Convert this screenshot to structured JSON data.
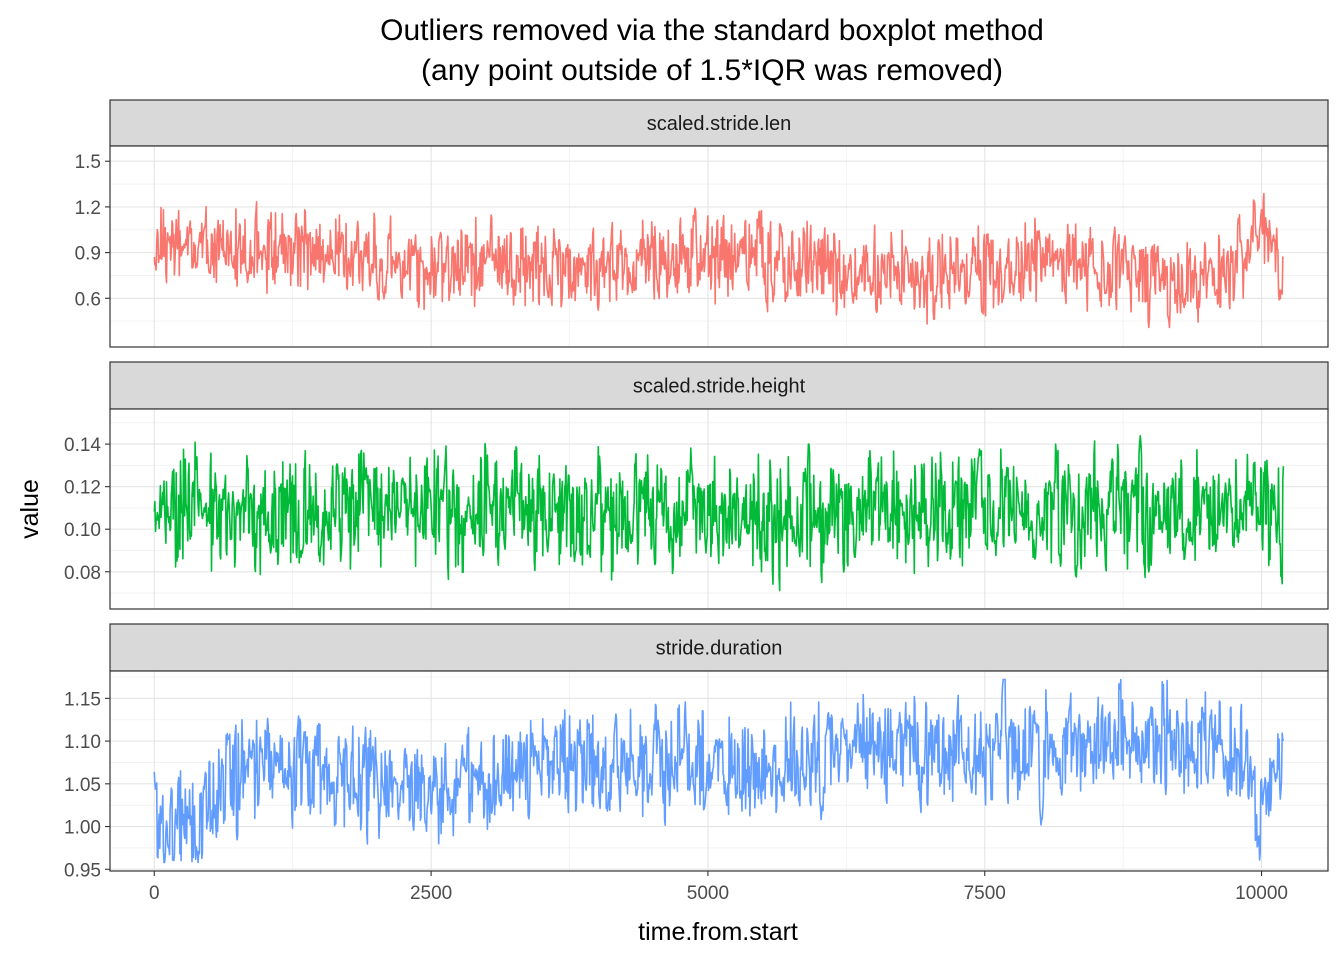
{
  "chart_data": {
    "type": "line",
    "title": "Outliers removed via the standard boxplot method",
    "subtitle": "(any point outside of 1.5*IQR was removed)",
    "xlabel": "time.from.start",
    "ylabel": "value",
    "xlim": [
      -400,
      10600
    ],
    "x_ticks": [
      0,
      2500,
      5000,
      7500,
      10000
    ],
    "x_tick_labels": [
      "0",
      "2500",
      "5000",
      "7500",
      "10000"
    ],
    "grid": true,
    "legend": "none",
    "facets": [
      {
        "strip": "scaled.stride.len",
        "color": "#F8766D",
        "ylim": [
          0.28,
          1.6
        ],
        "y_ticks": [
          0.6,
          0.9,
          1.2,
          1.5
        ],
        "y_tick_labels": [
          "0.6",
          "0.9",
          "1.2",
          "1.5"
        ],
        "baseline": 0.9,
        "amp": 0.22,
        "min": 0.38,
        "max": 1.45,
        "seed": 11,
        "x": [
          0,
          300,
          600,
          900,
          1200,
          1500,
          1800,
          2100,
          2400,
          2700,
          3000,
          3300,
          3600,
          3900,
          4200,
          4500,
          4800,
          5100,
          5400,
          5700,
          6000,
          6300,
          6600,
          6900,
          7200,
          7500,
          7800,
          8100,
          8400,
          8700,
          9000,
          9300,
          9600,
          9800,
          10000,
          10200
        ],
        "y": [
          1.05,
          0.95,
          0.9,
          0.92,
          0.9,
          0.88,
          0.88,
          0.85,
          0.85,
          0.83,
          0.82,
          0.82,
          0.82,
          0.8,
          0.82,
          0.83,
          0.85,
          0.85,
          0.86,
          0.85,
          0.8,
          0.78,
          0.78,
          0.75,
          0.75,
          0.78,
          0.8,
          0.82,
          0.82,
          0.78,
          0.75,
          0.72,
          0.72,
          0.85,
          1.1,
          0.75
        ]
      },
      {
        "strip": "scaled.stride.height",
        "color": "#00BA38",
        "ylim": [
          0.0625,
          0.1565
        ],
        "y_ticks": [
          0.08,
          0.1,
          0.12,
          0.14
        ],
        "y_tick_labels": [
          "0.08",
          "0.10",
          "0.12",
          "0.14"
        ],
        "baseline": 0.11,
        "amp": 0.022,
        "min": 0.066,
        "max": 0.15,
        "seed": 23,
        "x": [
          0,
          500,
          1000,
          1500,
          2000,
          2500,
          3000,
          3500,
          4000,
          4500,
          5000,
          5500,
          6000,
          6500,
          7000,
          7500,
          8000,
          8500,
          9000,
          9500,
          10000,
          10200
        ],
        "y": [
          0.112,
          0.11,
          0.108,
          0.11,
          0.11,
          0.108,
          0.11,
          0.11,
          0.108,
          0.11,
          0.11,
          0.108,
          0.11,
          0.108,
          0.11,
          0.11,
          0.108,
          0.11,
          0.11,
          0.112,
          0.114,
          0.105
        ]
      },
      {
        "strip": "stride.duration",
        "color": "#619CFF",
        "ylim": [
          0.948,
          1.182
        ],
        "y_ticks": [
          0.95,
          1.0,
          1.05,
          1.1,
          1.15
        ],
        "y_tick_labels": [
          "0.95",
          "1.00",
          "1.05",
          "1.10",
          "1.15"
        ],
        "baseline": 1.06,
        "amp": 0.05,
        "min": 0.958,
        "max": 1.172,
        "seed": 37,
        "x": [
          0,
          300,
          600,
          1000,
          1500,
          2000,
          2500,
          3000,
          3500,
          4000,
          4500,
          5000,
          5500,
          6000,
          6500,
          7000,
          7500,
          8000,
          8500,
          9000,
          9500,
          9800,
          10000,
          10200
        ],
        "y": [
          1.02,
          1.0,
          1.05,
          1.08,
          1.06,
          1.05,
          1.05,
          1.06,
          1.08,
          1.07,
          1.08,
          1.07,
          1.06,
          1.09,
          1.1,
          1.09,
          1.08,
          1.09,
          1.1,
          1.1,
          1.1,
          1.08,
          1.0,
          1.1
        ]
      }
    ]
  }
}
